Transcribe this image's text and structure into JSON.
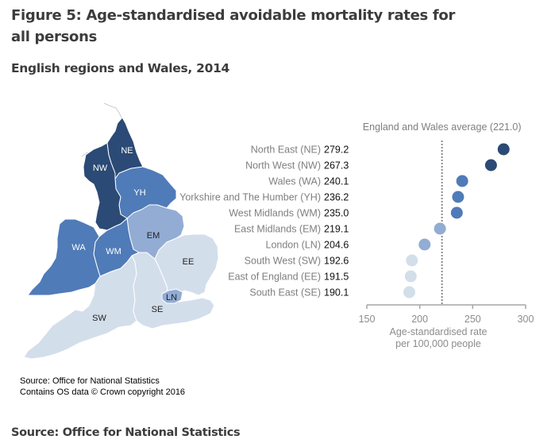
{
  "header": {
    "title": "Figure 5: Age-standardised avoidable mortality rates for all persons",
    "subtitle": "English regions and Wales, 2014"
  },
  "map": {
    "source_line1": "Source: Office for National Statistics",
    "source_line2": "Contains OS data © Crown copyright 2016",
    "regions": [
      {
        "code": "NE",
        "color": "#2b4a75",
        "label_color": "#ffffff"
      },
      {
        "code": "NW",
        "color": "#2b4a75",
        "label_color": "#ffffff"
      },
      {
        "code": "YH",
        "color": "#4f7bb8",
        "label_color": "#ffffff"
      },
      {
        "code": "WA",
        "color": "#4f7bb8",
        "label_color": "#ffffff"
      },
      {
        "code": "WM",
        "color": "#4f7bb8",
        "label_color": "#ffffff"
      },
      {
        "code": "EM",
        "color": "#92acd4",
        "label_color": "#222222"
      },
      {
        "code": "LN",
        "color": "#92acd4",
        "label_color": "#222222"
      },
      {
        "code": "EE",
        "color": "#d3deeb",
        "label_color": "#222222"
      },
      {
        "code": "SE",
        "color": "#d3deeb",
        "label_color": "#222222"
      },
      {
        "code": "SW",
        "color": "#d3deeb",
        "label_color": "#222222"
      }
    ]
  },
  "chart_data": {
    "type": "scatter",
    "subtype": "dot-plot",
    "title": "Figure 5: Age-standardised avoidable mortality rates for all persons",
    "subtitle": "English regions and Wales, 2014",
    "xlabel": "Age-standardised rate per 100,000 people",
    "xlabel_lines": [
      "Age-standardised rate",
      "per 100,000 people"
    ],
    "ylabel": "",
    "xlim": [
      150,
      300
    ],
    "xticks": [
      150,
      200,
      250,
      300
    ],
    "grid": false,
    "reference_line": {
      "label": "England and Wales average (221.0)",
      "value": 221.0,
      "style": "dotted"
    },
    "categories": [
      "North East (NE)",
      "North West (NW)",
      "Wales (WA)",
      "Yorkshire and The Humber (YH)",
      "West Midlands (WM)",
      "East Midlands (EM)",
      "London (LN)",
      "South West (SW)",
      "East of England (EE)",
      "South East (SE)"
    ],
    "values": [
      279.2,
      267.3,
      240.1,
      236.2,
      235.0,
      219.1,
      204.6,
      192.6,
      191.5,
      190.1
    ],
    "value_labels": [
      "279.2",
      "267.3",
      "240.1",
      "236.2",
      "235.0",
      "219.1",
      "204.6",
      "192.6",
      "191.5",
      "190.1"
    ],
    "colors": [
      "#2b4a75",
      "#2b4a75",
      "#4f7bb8",
      "#4f7bb8",
      "#4f7bb8",
      "#92acd4",
      "#92acd4",
      "#d3deeb",
      "#d3deeb",
      "#d3deeb"
    ]
  },
  "footer": {
    "source": "Source: Office for National Statistics"
  }
}
